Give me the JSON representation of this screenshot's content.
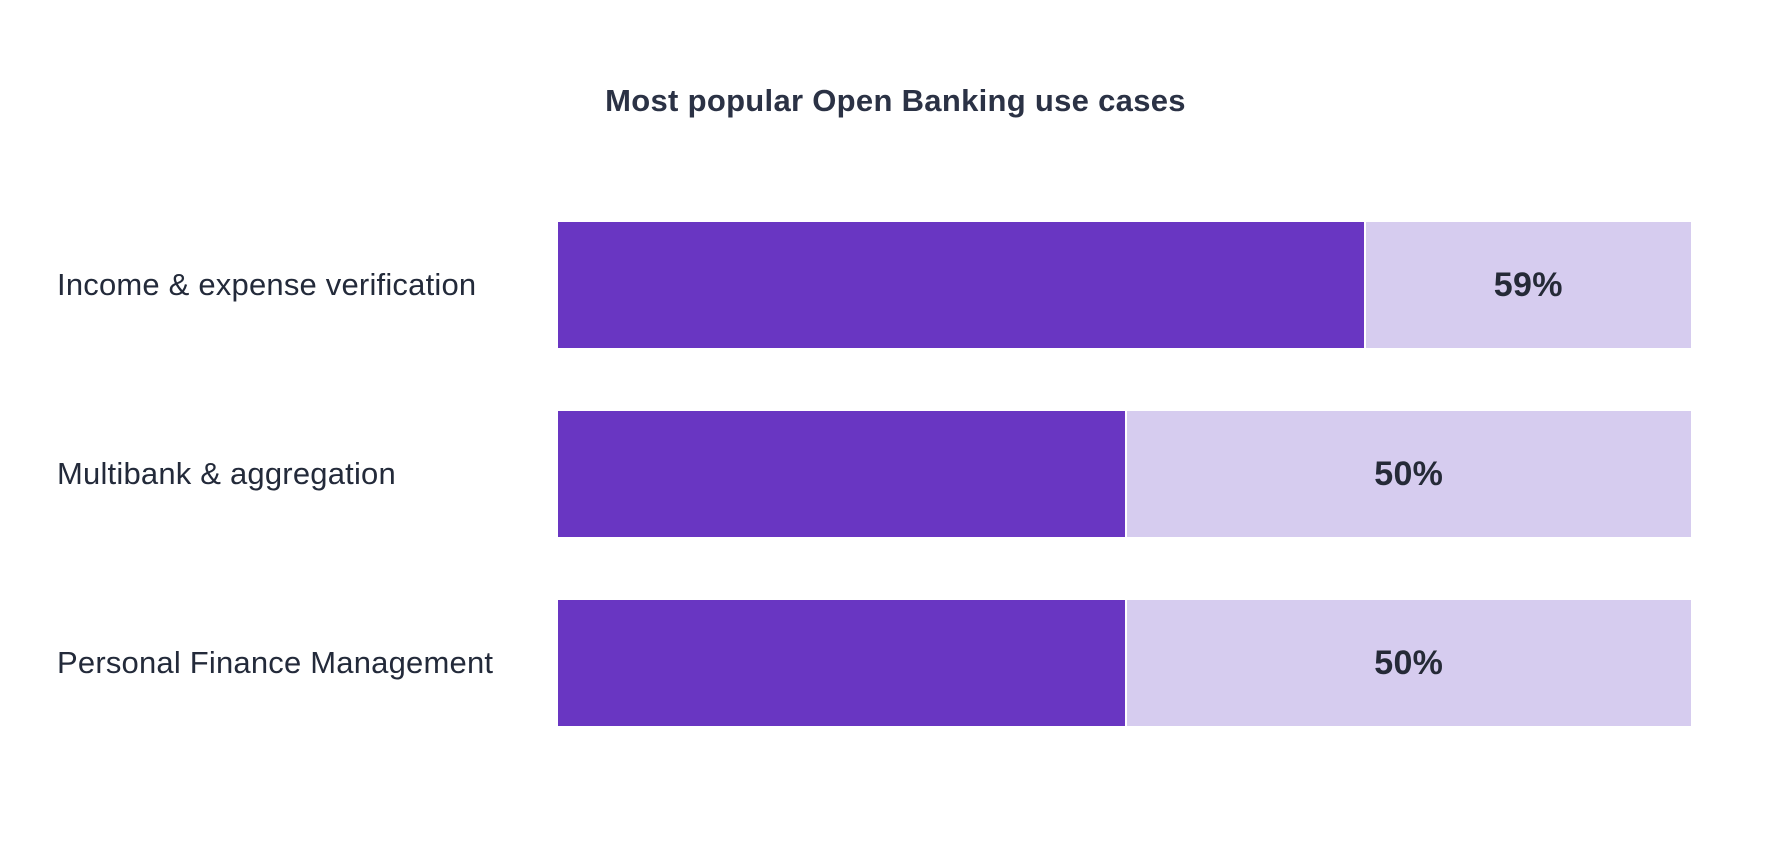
{
  "chart_data": {
    "type": "bar",
    "orientation": "horizontal",
    "title": "Most popular Open Banking use cases",
    "categories": [
      "Income & expense verification",
      "Multibank & aggregation",
      "Personal Finance Management"
    ],
    "values": [
      59,
      50,
      50
    ],
    "value_labels": [
      "59%",
      "50%",
      "50%"
    ],
    "bar_fill_fractions": [
      0.711,
      0.5,
      0.5
    ],
    "xlabel": "",
    "ylabel": "",
    "axis_ticks": "none",
    "grid": false,
    "legend": "none",
    "colors": {
      "bar_fill": "#6936c2",
      "bar_track": "#d6ccef",
      "title_text": "#2b3245",
      "label_text": "#232a3a",
      "value_text": "#252a37",
      "background": "#ffffff"
    }
  }
}
